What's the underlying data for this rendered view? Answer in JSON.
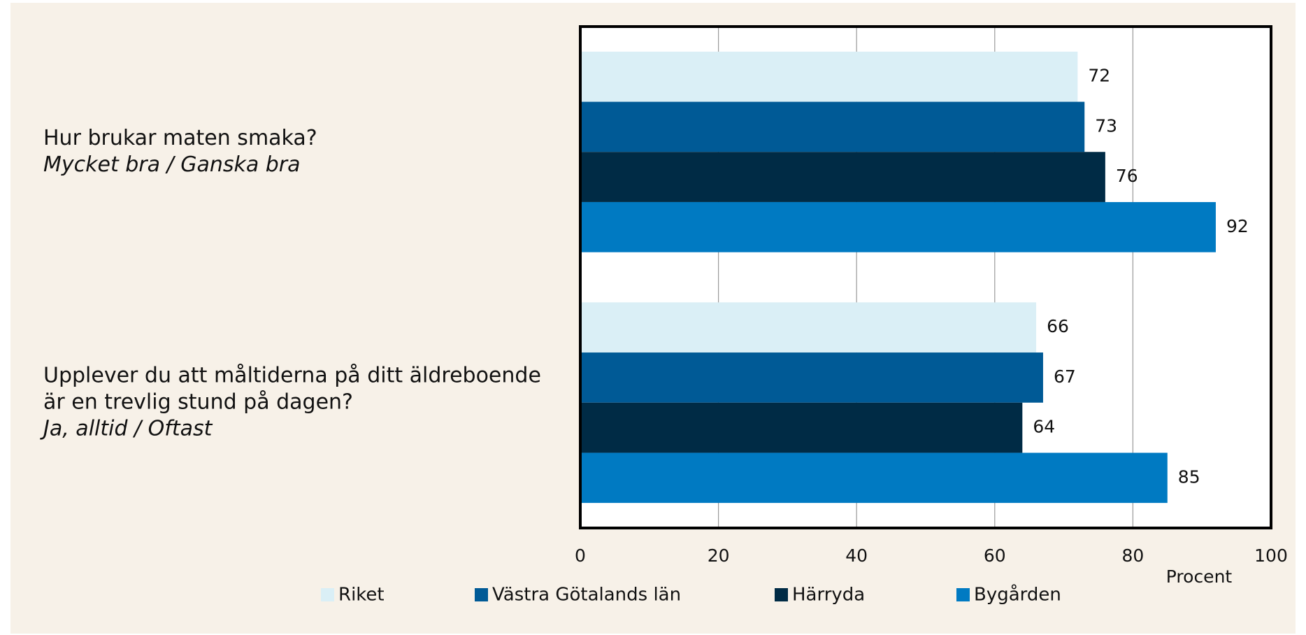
{
  "chart_data": {
    "type": "hbar",
    "categories": [
      [
        "Hur brukar maten smaka?"
      ],
      [
        "Upplever du att måltiderna på ditt äldreboende",
        "är en trevlig stund på dagen?"
      ]
    ],
    "category_subtitles": [
      "Mycket bra / Ganska bra",
      "Ja, alltid / Oftast"
    ],
    "series": [
      {
        "name": "Riket",
        "color": "#daeff6",
        "values": [
          72,
          66
        ]
      },
      {
        "name": "Västra Götalands län",
        "color": "#005a96",
        "values": [
          73,
          67
        ]
      },
      {
        "name": "Härryda",
        "color": "#002b45",
        "values": [
          76,
          64
        ]
      },
      {
        "name": "Bygården",
        "color": "#007ac2",
        "values": [
          92,
          85
        ]
      }
    ],
    "xlabel": "Procent",
    "xlim": [
      0,
      100
    ],
    "xticks": [
      0,
      20,
      40,
      60,
      80,
      100
    ],
    "grid": true
  }
}
